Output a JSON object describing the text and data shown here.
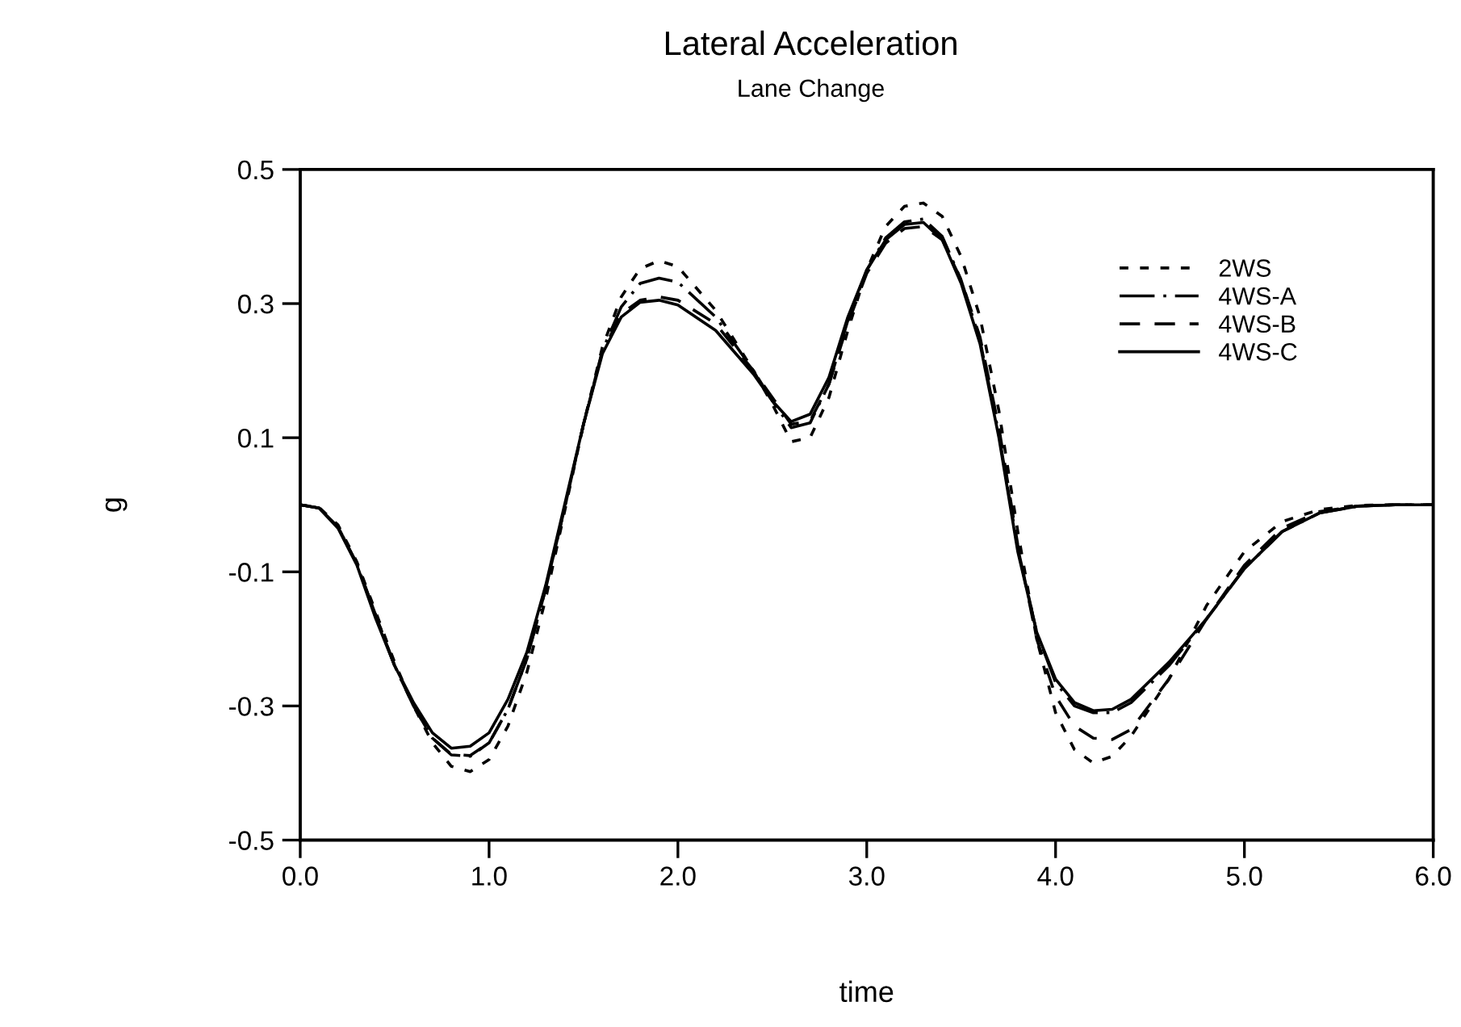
{
  "chart_data": {
    "type": "line",
    "title": "Lateral Acceleration",
    "subtitle": "Lane Change",
    "xlabel": "time",
    "ylabel": "g",
    "x": [
      0,
      0.1,
      0.2,
      0.3,
      0.4,
      0.5,
      0.6,
      0.7,
      0.8,
      0.9,
      1.0,
      1.1,
      1.2,
      1.3,
      1.4,
      1.5,
      1.6,
      1.7,
      1.8,
      1.9,
      2.0,
      2.2,
      2.4,
      2.5,
      2.6,
      2.7,
      2.8,
      2.9,
      3.0,
      3.1,
      3.2,
      3.3,
      3.4,
      3.5,
      3.6,
      3.7,
      3.8,
      3.9,
      4.0,
      4.1,
      4.2,
      4.3,
      4.4,
      4.6,
      4.8,
      5.0,
      5.2,
      5.4,
      5.6,
      5.8,
      6.0
    ],
    "series": [
      {
        "name": "2WS",
        "color": "#000000",
        "line_style": "dotted",
        "values": [
          0,
          -0.004,
          -0.03,
          -0.085,
          -0.16,
          -0.235,
          -0.3,
          -0.355,
          -0.39,
          -0.398,
          -0.38,
          -0.33,
          -0.25,
          -0.14,
          -0.01,
          0.12,
          0.235,
          0.31,
          0.352,
          0.364,
          0.355,
          0.29,
          0.2,
          0.15,
          0.094,
          0.1,
          0.16,
          0.26,
          0.35,
          0.415,
          0.445,
          0.45,
          0.43,
          0.37,
          0.28,
          0.14,
          -0.04,
          -0.2,
          -0.31,
          -0.365,
          -0.385,
          -0.375,
          -0.345,
          -0.26,
          -0.15,
          -0.07,
          -0.025,
          -0.007,
          -0.001,
          0,
          0
        ]
      },
      {
        "name": "4WS-A",
        "color": "#000000",
        "line_style": "dashdot",
        "values": [
          0,
          -0.005,
          -0.033,
          -0.088,
          -0.165,
          -0.24,
          -0.3,
          -0.348,
          -0.373,
          -0.375,
          -0.355,
          -0.305,
          -0.23,
          -0.125,
          -0.005,
          0.12,
          0.23,
          0.295,
          0.33,
          0.338,
          0.332,
          0.28,
          0.2,
          0.155,
          0.115,
          0.122,
          0.18,
          0.275,
          0.35,
          0.398,
          0.422,
          0.426,
          0.4,
          0.335,
          0.245,
          0.105,
          -0.065,
          -0.19,
          -0.265,
          -0.3,
          -0.31,
          -0.31,
          -0.295,
          -0.24,
          -0.17,
          -0.095,
          -0.04,
          -0.012,
          -0.002,
          0,
          0
        ]
      },
      {
        "name": "4WS-B",
        "color": "#000000",
        "line_style": "dashed",
        "values": [
          0,
          -0.005,
          -0.033,
          -0.088,
          -0.165,
          -0.24,
          -0.3,
          -0.348,
          -0.372,
          -0.374,
          -0.355,
          -0.305,
          -0.23,
          -0.125,
          -0.005,
          0.12,
          0.228,
          0.285,
          0.305,
          0.31,
          0.305,
          0.27,
          0.2,
          0.16,
          0.12,
          0.125,
          0.18,
          0.27,
          0.345,
          0.39,
          0.412,
          0.415,
          0.395,
          0.335,
          0.25,
          0.115,
          -0.06,
          -0.2,
          -0.285,
          -0.33,
          -0.348,
          -0.35,
          -0.335,
          -0.26,
          -0.17,
          -0.09,
          -0.035,
          -0.01,
          -0.002,
          0,
          0
        ]
      },
      {
        "name": "4WS-C",
        "color": "#000000",
        "line_style": "solid",
        "values": [
          0,
          -0.005,
          -0.035,
          -0.09,
          -0.17,
          -0.24,
          -0.295,
          -0.34,
          -0.363,
          -0.36,
          -0.34,
          -0.29,
          -0.22,
          -0.12,
          0.0,
          0.12,
          0.225,
          0.28,
          0.302,
          0.305,
          0.298,
          0.26,
          0.195,
          0.155,
          0.124,
          0.135,
          0.19,
          0.28,
          0.35,
          0.395,
          0.418,
          0.421,
          0.395,
          0.33,
          0.24,
          0.1,
          -0.07,
          -0.19,
          -0.26,
          -0.295,
          -0.307,
          -0.305,
          -0.29,
          -0.235,
          -0.17,
          -0.095,
          -0.04,
          -0.012,
          -0.002,
          0,
          0
        ]
      }
    ],
    "xlim": [
      0,
      6
    ],
    "xticks": [
      {
        "value": 0,
        "label": "0.0"
      },
      {
        "value": 1,
        "label": "1.0"
      },
      {
        "value": 2,
        "label": "2.0"
      },
      {
        "value": 3,
        "label": "3.0"
      },
      {
        "value": 4,
        "label": "4.0"
      },
      {
        "value": 5,
        "label": "5.0"
      },
      {
        "value": 6,
        "label": "6.0"
      }
    ],
    "ylim": [
      -0.5,
      0.5
    ],
    "yticks": [
      -0.5,
      -0.3,
      -0.1,
      0.1,
      0.3,
      0.5
    ],
    "grid": false,
    "legend": "top right"
  }
}
